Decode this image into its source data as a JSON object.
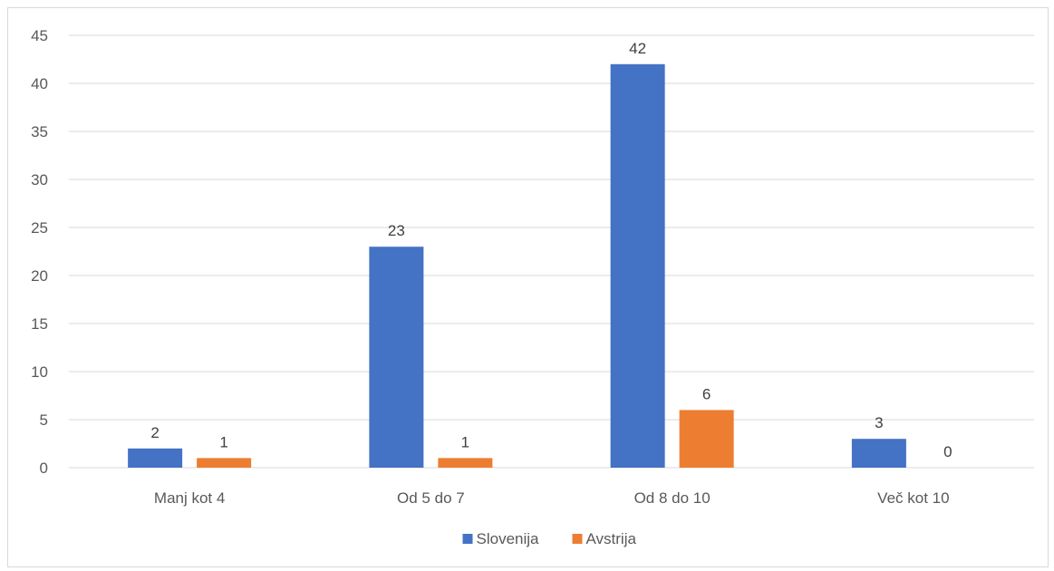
{
  "chart_data": {
    "type": "bar",
    "title": "",
    "xlabel": "",
    "ylabel": "",
    "categories": [
      "Manj kot 4",
      "Od 5 do 7",
      "Od 8 do 10",
      "Več kot 10"
    ],
    "series": [
      {
        "name": "Slovenija",
        "color": "#4472c4",
        "values": [
          2,
          23,
          42,
          3
        ]
      },
      {
        "name": "Avstrija",
        "color": "#ed7d31",
        "values": [
          1,
          1,
          6,
          0
        ]
      }
    ],
    "ylim": [
      0,
      45
    ],
    "yticks": [
      0,
      5,
      10,
      15,
      20,
      25,
      30,
      35,
      40,
      45
    ],
    "grid": true,
    "legend": "bottom-center",
    "data_labels": true
  }
}
